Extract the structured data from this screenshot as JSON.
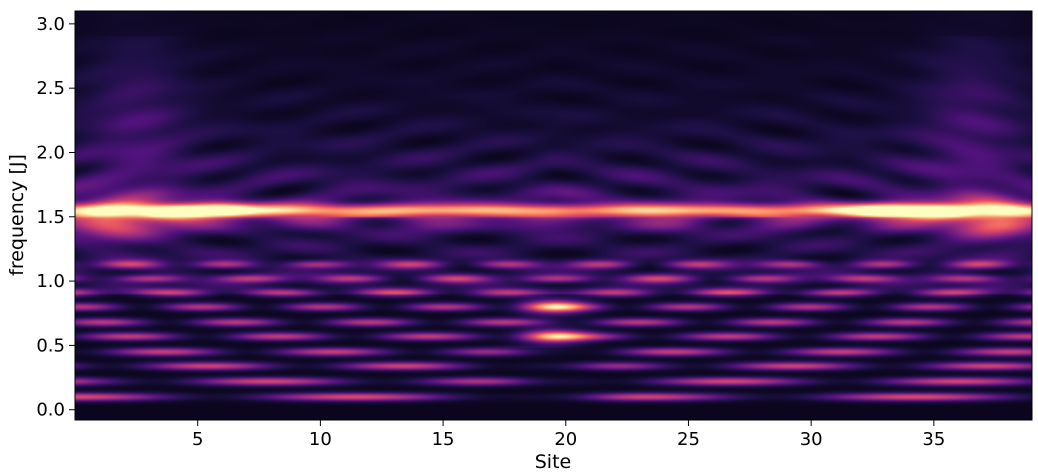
{
  "chart_data": {
    "type": "heatmap",
    "title": "",
    "xlabel": "Site",
    "ylabel": "frequency [J]",
    "xlim": [
      0,
      39
    ],
    "ylim": [
      -0.08,
      3.1
    ],
    "x_ticks": [
      5,
      10,
      15,
      20,
      25,
      30,
      35
    ],
    "x_tick_labels": [
      "5",
      "10",
      "15",
      "20",
      "25",
      "30",
      "35"
    ],
    "y_ticks": [
      0.0,
      0.5,
      1.0,
      1.5,
      2.0,
      2.5,
      3.0
    ],
    "y_tick_labels": [
      "0.0",
      "0.5",
      "1.0",
      "1.5",
      "2.0",
      "2.5",
      "3.0"
    ],
    "colormap": "magma",
    "colormap_stops": [
      "#000004",
      "#1c1044",
      "#4f127b",
      "#812581",
      "#b5367a",
      "#e55064",
      "#fb8761",
      "#fec287",
      "#fcfdbf"
    ],
    "grid": false,
    "sites": 39,
    "band_center_frequency": 1.55,
    "low_frequency_bands": [
      0.1,
      0.22,
      0.34,
      0.45,
      0.57,
      0.68,
      0.8,
      0.91,
      1.02,
      1.13
    ],
    "hot_spots": [
      {
        "site": 4,
        "frequency": 1.53
      },
      {
        "site": 6,
        "frequency": 1.55
      },
      {
        "site": 33,
        "frequency": 1.55
      },
      {
        "site": 35,
        "frequency": 1.53
      },
      {
        "site": 19.5,
        "frequency": 0.57
      },
      {
        "site": 19.5,
        "frequency": 0.8
      }
    ]
  }
}
